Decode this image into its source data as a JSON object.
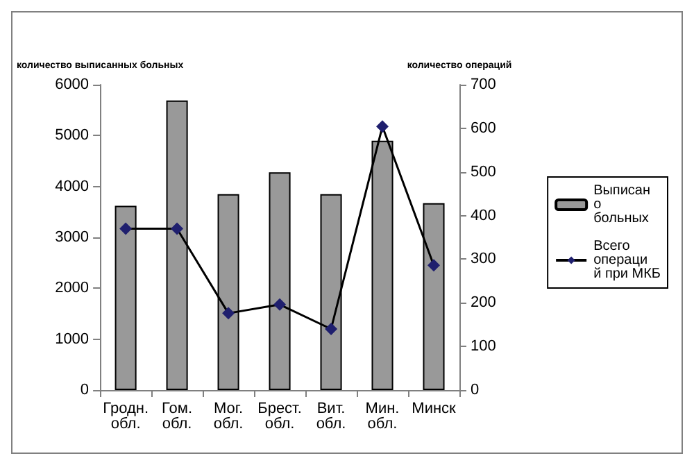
{
  "chart_data": {
    "type": "bar",
    "ylabel": "количество выписанных больных",
    "y2label": "количество операций",
    "categories": [
      "Гродн. обл.",
      "Гом. обл.",
      "Мог. обл.",
      "Брест. обл.",
      "Вит. обл.",
      "Мин. обл.",
      "Минск"
    ],
    "series": [
      {
        "name": "Выписано больных",
        "color": "#999999",
        "values": [
          3620,
          5690,
          3850,
          4280,
          3850,
          4900,
          3670
        ]
      },
      {
        "name": "Всего операций при МКБ",
        "type": "line",
        "axis": "y2",
        "color": "#1f1f6e",
        "values": [
          370,
          370,
          176,
          196,
          140,
          604,
          286
        ]
      }
    ],
    "ylim": [
      0,
      6000
    ],
    "yticks": [
      0,
      1000,
      2000,
      3000,
      4000,
      5000,
      6000
    ],
    "y2lim": [
      0,
      700
    ],
    "y2ticks": [
      0,
      100,
      200,
      300,
      400,
      500,
      600,
      700
    ],
    "grid": false,
    "legend": "right",
    "marker": "diamond"
  }
}
